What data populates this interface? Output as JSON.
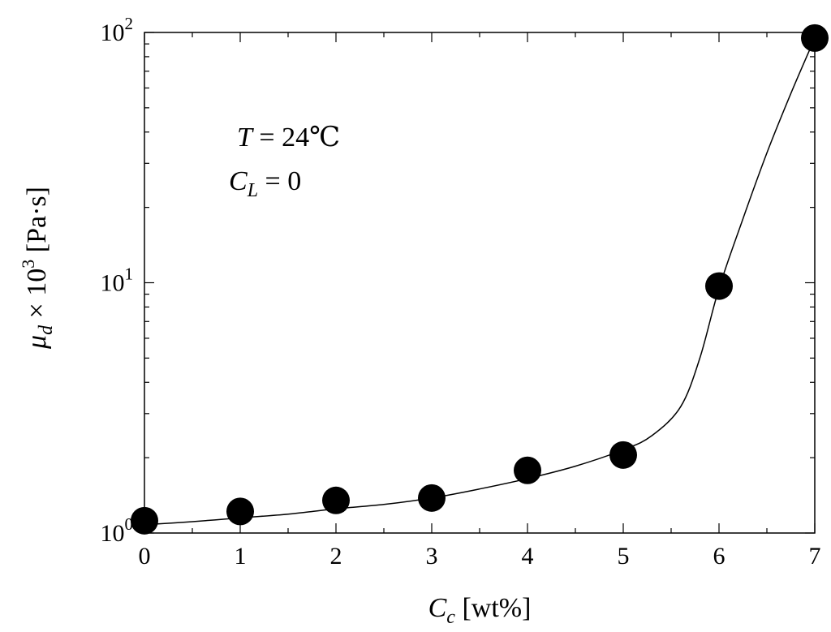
{
  "chart_data": {
    "type": "scatter",
    "x_scale": "linear",
    "y_scale": "log",
    "xlim": [
      0,
      7
    ],
    "ylim": [
      1,
      100
    ],
    "grid": false,
    "x_ticks": [
      {
        "value": 0,
        "label": "0"
      },
      {
        "value": 1,
        "label": "1"
      },
      {
        "value": 2,
        "label": "2"
      },
      {
        "value": 3,
        "label": "3"
      },
      {
        "value": 4,
        "label": "4"
      },
      {
        "value": 5,
        "label": "5"
      },
      {
        "value": 6,
        "label": "6"
      },
      {
        "value": 7,
        "label": "7"
      }
    ],
    "x_minor_ticks": [
      0.5,
      1.5,
      2.5,
      3.5,
      4.5,
      5.5,
      6.5
    ],
    "y_ticks": [
      {
        "value": 1,
        "base": "10",
        "exp": "0"
      },
      {
        "value": 10,
        "base": "10",
        "exp": "1"
      },
      {
        "value": 100,
        "base": "10",
        "exp": "2"
      }
    ],
    "y_minor_ticks": [
      2,
      3,
      4,
      5,
      6,
      7,
      8,
      9,
      20,
      30,
      40,
      50,
      60,
      70,
      80,
      90
    ],
    "xlabel": {
      "main": "C",
      "sub": "c",
      "unit": " [wt%]"
    },
    "ylabel": {
      "mu": "μ",
      "sub": "d",
      "times": " × 10",
      "exp": "3",
      "unit": " [Pa·s]"
    },
    "annotations": [
      {
        "var": "T",
        "text": " = 24℃"
      },
      {
        "var": "C",
        "sub": "L",
        "text": " = 0"
      }
    ],
    "series": [
      {
        "marker": "filled-circle",
        "color": "#000000",
        "points": [
          {
            "x": 0,
            "y": 1.12
          },
          {
            "x": 1,
            "y": 1.22
          },
          {
            "x": 2,
            "y": 1.35
          },
          {
            "x": 3,
            "y": 1.38
          },
          {
            "x": 4,
            "y": 1.78
          },
          {
            "x": 5,
            "y": 2.05
          },
          {
            "x": 6,
            "y": 9.7
          },
          {
            "x": 7,
            "y": 95
          }
        ]
      }
    ],
    "fit_curve": {
      "style": "line",
      "color": "#000000",
      "points": [
        {
          "x": 0,
          "y": 1.08
        },
        {
          "x": 0.5,
          "y": 1.11
        },
        {
          "x": 1,
          "y": 1.15
        },
        {
          "x": 1.5,
          "y": 1.19
        },
        {
          "x": 2,
          "y": 1.25
        },
        {
          "x": 2.5,
          "y": 1.3
        },
        {
          "x": 3,
          "y": 1.38
        },
        {
          "x": 3.5,
          "y": 1.5
        },
        {
          "x": 4,
          "y": 1.65
        },
        {
          "x": 4.5,
          "y": 1.85
        },
        {
          "x": 5,
          "y": 2.15
        },
        {
          "x": 5.3,
          "y": 2.45
        },
        {
          "x": 5.6,
          "y": 3.2
        },
        {
          "x": 5.8,
          "y": 5.0
        },
        {
          "x": 6,
          "y": 9.5
        },
        {
          "x": 6.25,
          "y": 18
        },
        {
          "x": 6.5,
          "y": 33
        },
        {
          "x": 6.75,
          "y": 57
        },
        {
          "x": 7,
          "y": 95
        }
      ]
    }
  }
}
